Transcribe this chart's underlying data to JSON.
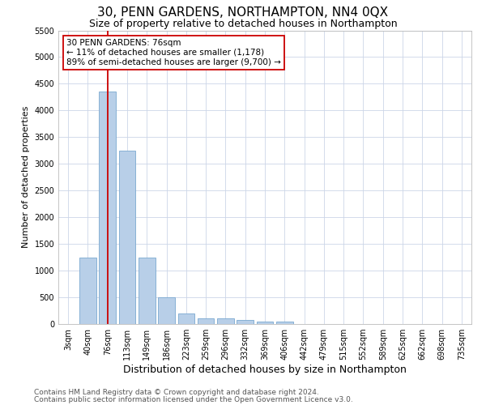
{
  "title": "30, PENN GARDENS, NORTHAMPTON, NN4 0QX",
  "subtitle": "Size of property relative to detached houses in Northampton",
  "xlabel": "Distribution of detached houses by size in Northampton",
  "ylabel": "Number of detached properties",
  "categories": [
    "3sqm",
    "40sqm",
    "76sqm",
    "113sqm",
    "149sqm",
    "186sqm",
    "223sqm",
    "259sqm",
    "296sqm",
    "332sqm",
    "369sqm",
    "406sqm",
    "442sqm",
    "479sqm",
    "515sqm",
    "552sqm",
    "589sqm",
    "625sqm",
    "662sqm",
    "698sqm",
    "735sqm"
  ],
  "values": [
    0,
    1250,
    4350,
    3250,
    1250,
    500,
    200,
    100,
    100,
    75,
    50,
    50,
    0,
    0,
    0,
    0,
    0,
    0,
    0,
    0,
    0
  ],
  "bar_color": "#b8cfe8",
  "bar_edge_color": "#7aa8d0",
  "highlight_bar_index": 2,
  "highlight_color": "#cc0000",
  "annotation_text": "30 PENN GARDENS: 76sqm\n← 11% of detached houses are smaller (1,178)\n89% of semi-detached houses are larger (9,700) →",
  "annotation_box_color": "#ffffff",
  "annotation_box_edge_color": "#cc0000",
  "ylim": [
    0,
    5500
  ],
  "yticks": [
    0,
    500,
    1000,
    1500,
    2000,
    2500,
    3000,
    3500,
    4000,
    4500,
    5000,
    5500
  ],
  "footer_line1": "Contains HM Land Registry data © Crown copyright and database right 2024.",
  "footer_line2": "Contains public sector information licensed under the Open Government Licence v3.0.",
  "background_color": "#ffffff",
  "grid_color": "#ccd6e8",
  "title_fontsize": 11,
  "subtitle_fontsize": 9,
  "xlabel_fontsize": 9,
  "ylabel_fontsize": 8,
  "tick_fontsize": 7,
  "annotation_fontsize": 7.5,
  "footer_fontsize": 6.5
}
